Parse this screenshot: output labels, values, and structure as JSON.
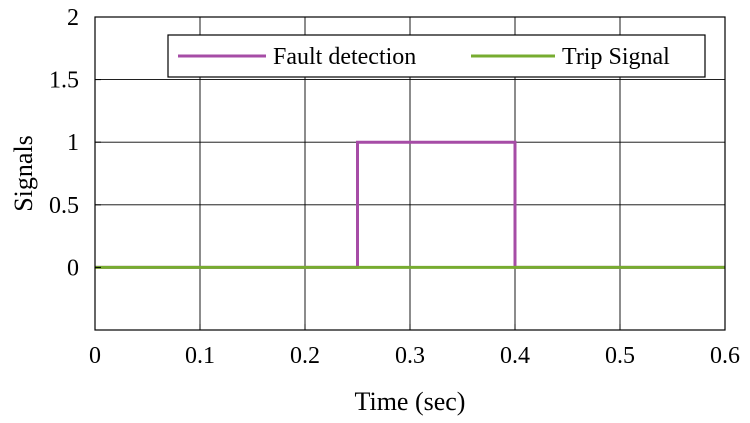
{
  "chart_data": {
    "type": "line",
    "title": "",
    "xlabel": "Time (sec)",
    "ylabel": "Signals",
    "xlim": [
      0,
      0.6
    ],
    "ylim": [
      -0.5,
      2
    ],
    "xticks": [
      0,
      0.1,
      0.2,
      0.3,
      0.4,
      0.5,
      0.6
    ],
    "yticks": [
      0,
      0.5,
      1,
      1.5,
      2
    ],
    "xtick_labels": [
      "0",
      "0.1",
      "0.2",
      "0.3",
      "0.4",
      "0.5",
      "0.6"
    ],
    "ytick_labels": [
      "0",
      "0.5",
      "1",
      "1.5",
      "2"
    ],
    "grid": true,
    "legend": "top-right",
    "series": [
      {
        "name": "Fault detection",
        "color": "#a64ca6",
        "x": [
          0,
          0.25,
          0.25,
          0.4,
          0.4,
          0.6
        ],
        "y": [
          0,
          0,
          1,
          1,
          0,
          0
        ]
      },
      {
        "name": "Trip Signal",
        "color": "#77ac30",
        "x": [
          0,
          0.6
        ],
        "y": [
          0,
          0
        ]
      }
    ]
  }
}
